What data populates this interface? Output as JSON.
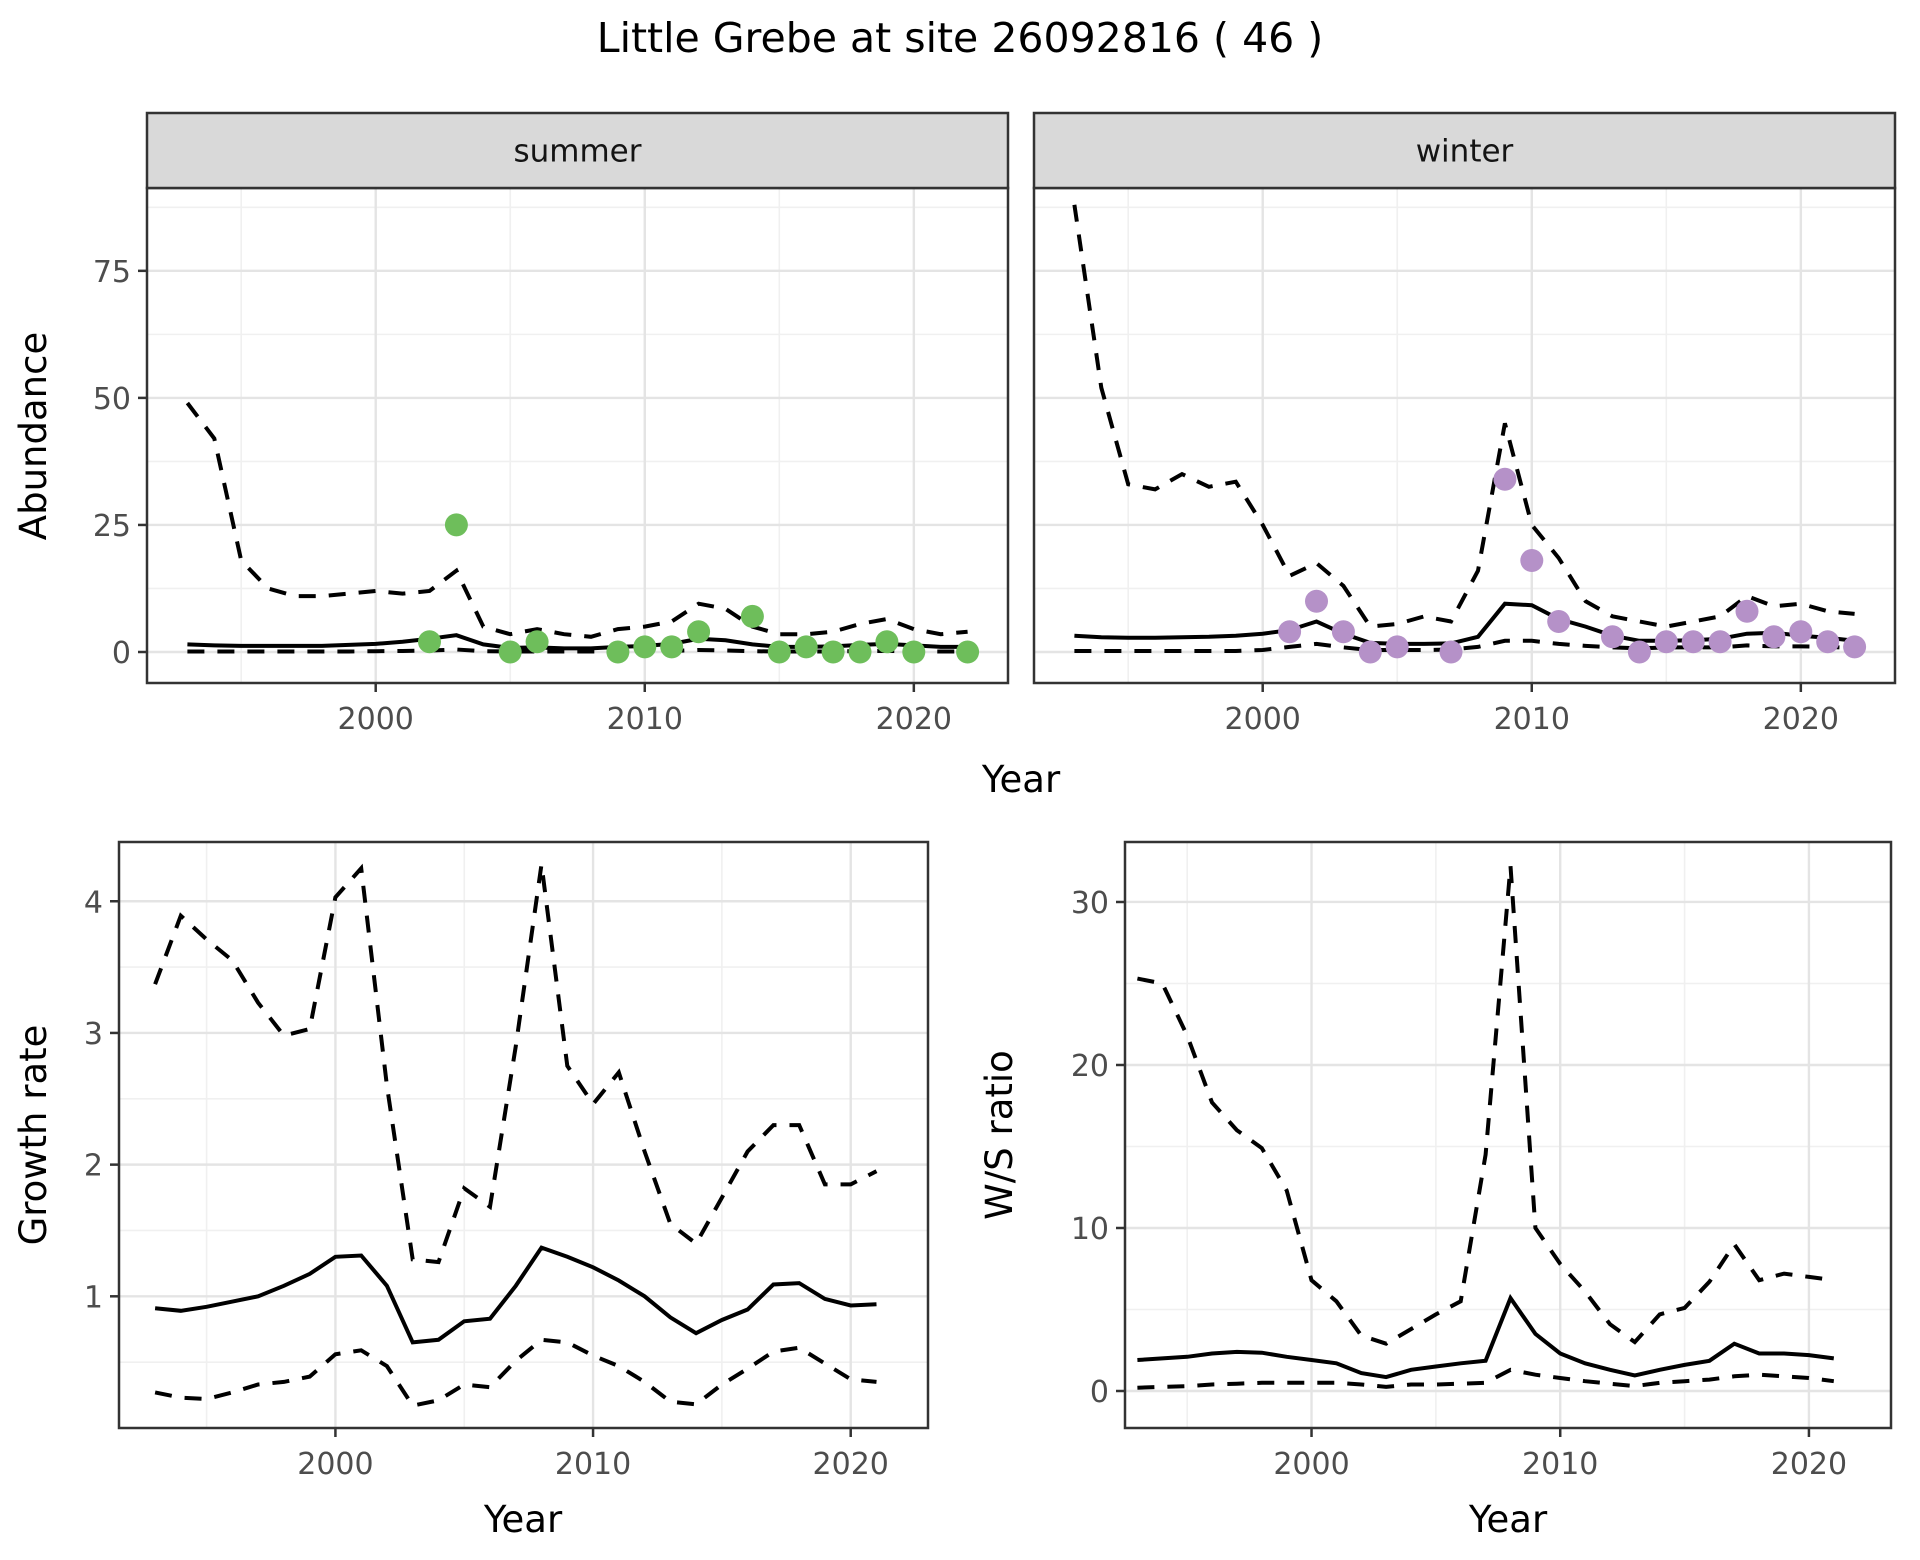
{
  "title": "Little Grebe at site 26092816 ( 46 )",
  "colors": {
    "summer_point": "#6EBE5B",
    "winter_point": "#B591C8",
    "line": "#000000",
    "grid_major": "#E4E4E4",
    "grid_minor": "#F0F0F0",
    "panel_border": "#333333",
    "strip_bg": "#D9D9D9",
    "strip_text": "#141414",
    "tick_label": "#4D4D4D",
    "axis_title": "#000000"
  },
  "chart_data": [
    {
      "id": "abundance_summer",
      "type": "line",
      "facet_label": "summer",
      "xlabel": "Year",
      "ylabel": "Abundance",
      "xlim": [
        1991.5,
        2023.5
      ],
      "ylim": [
        -6.1,
        91.3
      ],
      "x_ticks": [
        2000,
        2010,
        2020
      ],
      "x_minor": [
        1995,
        2005,
        2015
      ],
      "y_ticks": [
        0,
        25,
        50,
        75
      ],
      "y_minor": [
        12.5,
        37.5,
        62.5,
        87.5
      ],
      "grid": true,
      "legend": "none",
      "years": [
        1993,
        1994,
        1995,
        1996,
        1997,
        1998,
        1999,
        2000,
        2001,
        2002,
        2003,
        2004,
        2005,
        2006,
        2007,
        2008,
        2009,
        2010,
        2011,
        2012,
        2013,
        2014,
        2015,
        2016,
        2017,
        2018,
        2019,
        2020,
        2021,
        2022
      ],
      "series": [
        {
          "name": "upper_95_CI",
          "style": "dashed",
          "values": [
            49,
            42,
            18,
            12.5,
            11,
            11,
            11.5,
            12,
            11.5,
            12,
            16,
            5,
            3.5,
            4.5,
            3.5,
            3,
            4.5,
            5,
            6,
            9.5,
            8.5,
            5,
            3.5,
            3.5,
            4,
            5.5,
            6.5,
            4.5,
            3.5,
            4
          ]
        },
        {
          "name": "median",
          "style": "solid",
          "values": [
            1.5,
            1.3,
            1.2,
            1.2,
            1.2,
            1.2,
            1.4,
            1.6,
            2.0,
            2.6,
            3.3,
            1.5,
            0.8,
            0.9,
            0.7,
            0.7,
            1.0,
            1.2,
            1.6,
            2.6,
            2.3,
            1.5,
            1.0,
            1.0,
            1.1,
            1.4,
            1.6,
            1.3,
            1.0,
            1.0
          ]
        },
        {
          "name": "lower_95_CI",
          "style": "dashed",
          "values": [
            0.1,
            0.1,
            0.1,
            0.1,
            0.1,
            0.1,
            0.1,
            0.15,
            0.2,
            0.3,
            0.5,
            0.15,
            0.1,
            0.1,
            0.1,
            0.1,
            0.1,
            0.15,
            0.2,
            0.4,
            0.3,
            0.15,
            0.1,
            0.1,
            0.1,
            0.2,
            0.2,
            0.15,
            0.1,
            0.1
          ]
        }
      ],
      "points": {
        "name": "observed_counts",
        "color_key": "summer_point",
        "years": [
          2002,
          2003,
          2005,
          2006,
          2009,
          2010,
          2011,
          2012,
          2014,
          2015,
          2016,
          2017,
          2018,
          2019,
          2020,
          2022
        ],
        "values": [
          2,
          25,
          0,
          2,
          0,
          1,
          1,
          4,
          7,
          0,
          1,
          0,
          0,
          2,
          0,
          0
        ]
      }
    },
    {
      "id": "abundance_winter",
      "type": "line",
      "facet_label": "winter",
      "xlabel": "Year",
      "ylabel": "Abundance",
      "xlim": [
        1991.5,
        2023.5
      ],
      "ylim": [
        -6.1,
        91.3
      ],
      "x_ticks": [
        2000,
        2010,
        2020
      ],
      "x_minor": [
        1995,
        2005,
        2015
      ],
      "y_ticks": [
        0,
        25,
        50,
        75
      ],
      "y_minor": [
        12.5,
        37.5,
        62.5,
        87.5
      ],
      "grid": true,
      "legend": "none",
      "years": [
        1993,
        1994,
        1995,
        1996,
        1997,
        1998,
        1999,
        2000,
        2001,
        2002,
        2003,
        2004,
        2005,
        2006,
        2007,
        2008,
        2009,
        2010,
        2011,
        2012,
        2013,
        2014,
        2015,
        2016,
        2017,
        2018,
        2019,
        2020,
        2021,
        2022
      ],
      "series": [
        {
          "name": "upper_95_CI",
          "style": "dashed",
          "values": [
            88,
            52,
            33,
            32,
            35,
            32.5,
            33.5,
            25,
            15,
            17.5,
            13,
            5,
            5.5,
            7,
            6,
            16,
            45,
            25,
            18.5,
            10,
            7,
            6,
            5,
            6,
            7,
            11,
            9,
            9.5,
            8,
            7.5
          ]
        },
        {
          "name": "median",
          "style": "solid",
          "values": [
            3.2,
            2.9,
            2.8,
            2.8,
            2.9,
            3.0,
            3.2,
            3.6,
            4.3,
            6.0,
            3.6,
            1.8,
            1.6,
            1.6,
            1.7,
            3.0,
            9.5,
            9.2,
            6.5,
            5.0,
            3.2,
            2.2,
            2.2,
            2.3,
            2.6,
            3.6,
            3.8,
            3.2,
            2.8,
            2.2
          ]
        },
        {
          "name": "lower_95_CI",
          "style": "dashed",
          "values": [
            0.2,
            0.2,
            0.2,
            0.2,
            0.2,
            0.2,
            0.2,
            0.4,
            1.0,
            1.6,
            0.9,
            0.4,
            0.4,
            0.4,
            0.5,
            1.0,
            2.2,
            2.2,
            1.6,
            1.2,
            0.9,
            0.7,
            0.9,
            0.9,
            0.9,
            1.3,
            1.1,
            1.1,
            1.0,
            0.8
          ]
        }
      ],
      "points": {
        "name": "observed_counts",
        "color_key": "winter_point",
        "years": [
          2001,
          2002,
          2003,
          2004,
          2005,
          2007,
          2009,
          2010,
          2011,
          2013,
          2014,
          2015,
          2016,
          2017,
          2018,
          2019,
          2020,
          2021,
          2022
        ],
        "values": [
          4,
          10,
          4,
          0,
          1,
          0,
          34,
          18,
          6,
          3,
          0,
          2,
          2,
          2,
          8,
          3,
          4,
          2,
          1
        ]
      }
    },
    {
      "id": "growth_rate",
      "type": "line",
      "facet_label": null,
      "xlabel": "Year",
      "ylabel": "Growth rate",
      "xlim": [
        1991.6,
        2023.0
      ],
      "ylim": [
        0.0,
        4.45
      ],
      "x_ticks": [
        2000,
        2010,
        2020
      ],
      "x_minor": [
        1995,
        2005,
        2015
      ],
      "y_ticks": [
        1,
        2,
        3,
        4
      ],
      "y_minor": [
        0.5,
        1.5,
        2.5,
        3.5
      ],
      "grid": true,
      "legend": "none",
      "years": [
        1993,
        1994,
        1995,
        1996,
        1997,
        1998,
        1999,
        2000,
        2001,
        2002,
        2003,
        2004,
        2005,
        2006,
        2007,
        2008,
        2009,
        2010,
        2011,
        2012,
        2013,
        2014,
        2015,
        2016,
        2017,
        2018,
        2019,
        2020,
        2021
      ],
      "series": [
        {
          "name": "upper_95_CI",
          "style": "dashed",
          "values": [
            3.37,
            3.89,
            3.71,
            3.55,
            3.23,
            2.98,
            3.03,
            4.03,
            4.25,
            2.6,
            1.28,
            1.26,
            1.82,
            1.68,
            2.9,
            4.28,
            2.75,
            2.46,
            2.7,
            2.1,
            1.55,
            1.4,
            1.75,
            2.1,
            2.3,
            2.3,
            1.85,
            1.85,
            1.95
          ]
        },
        {
          "name": "median",
          "style": "solid",
          "values": [
            0.91,
            0.89,
            0.92,
            0.96,
            1.0,
            1.08,
            1.17,
            1.3,
            1.31,
            1.08,
            0.65,
            0.67,
            0.81,
            0.83,
            1.08,
            1.37,
            1.3,
            1.22,
            1.12,
            1.0,
            0.84,
            0.72,
            0.82,
            0.9,
            1.09,
            1.1,
            0.98,
            0.93,
            0.94
          ]
        },
        {
          "name": "lower_95_CI",
          "style": "dashed",
          "values": [
            0.27,
            0.23,
            0.22,
            0.27,
            0.33,
            0.35,
            0.39,
            0.56,
            0.59,
            0.47,
            0.17,
            0.21,
            0.33,
            0.31,
            0.51,
            0.67,
            0.65,
            0.55,
            0.47,
            0.35,
            0.2,
            0.18,
            0.33,
            0.45,
            0.58,
            0.61,
            0.49,
            0.37,
            0.35
          ]
        }
      ],
      "points": null
    },
    {
      "id": "ws_ratio",
      "type": "line",
      "facet_label": null,
      "xlabel": "Year",
      "ylabel": "W/S ratio",
      "xlim": [
        1992.5,
        2023.3
      ],
      "ylim": [
        -2.27,
        33.68
      ],
      "x_ticks": [
        2000,
        2010,
        2020
      ],
      "x_minor": [
        1995,
        2005,
        2015
      ],
      "y_ticks": [
        0,
        10,
        20,
        30
      ],
      "y_minor": [
        5,
        15,
        25
      ],
      "grid": true,
      "legend": "none",
      "years": [
        1993,
        1994,
        1995,
        1996,
        1997,
        1998,
        1999,
        2000,
        2001,
        2002,
        2003,
        2004,
        2005,
        2006,
        2007,
        2008,
        2009,
        2010,
        2011,
        2012,
        2013,
        2014,
        2015,
        2016,
        2017,
        2018,
        2019,
        2020,
        2021
      ],
      "series": [
        {
          "name": "upper_95_CI",
          "style": "dashed",
          "values": [
            25.3,
            25.0,
            21.8,
            17.7,
            16.0,
            14.9,
            12.3,
            6.8,
            5.5,
            3.4,
            2.9,
            3.8,
            4.7,
            5.5,
            14.5,
            32.2,
            10.0,
            7.8,
            6.1,
            4.1,
            3.0,
            4.7,
            5.1,
            6.7,
            9.0,
            6.8,
            7.2,
            7.0,
            6.8
          ]
        },
        {
          "name": "median",
          "style": "solid",
          "values": [
            1.9,
            2.0,
            2.1,
            2.3,
            2.4,
            2.35,
            2.1,
            1.9,
            1.7,
            1.1,
            0.85,
            1.3,
            1.5,
            1.7,
            1.85,
            5.7,
            3.5,
            2.3,
            1.7,
            1.3,
            0.95,
            1.3,
            1.6,
            1.85,
            2.9,
            2.3,
            2.3,
            2.2,
            2.0
          ]
        },
        {
          "name": "lower_95_CI",
          "style": "dashed",
          "values": [
            0.2,
            0.25,
            0.3,
            0.4,
            0.45,
            0.5,
            0.5,
            0.5,
            0.5,
            0.4,
            0.25,
            0.4,
            0.4,
            0.45,
            0.5,
            1.3,
            1.0,
            0.8,
            0.6,
            0.45,
            0.3,
            0.5,
            0.6,
            0.7,
            0.9,
            1.0,
            0.9,
            0.8,
            0.6
          ]
        }
      ],
      "points": null
    }
  ]
}
